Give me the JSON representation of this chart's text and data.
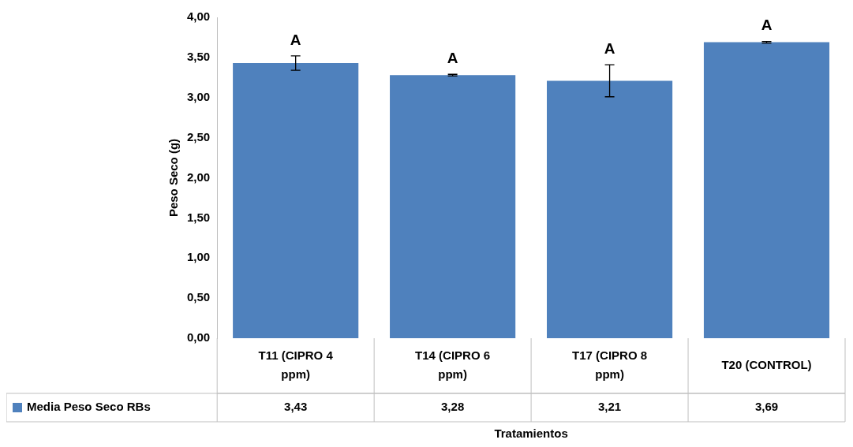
{
  "chart_data": {
    "type": "bar",
    "xlabel": "Tratamientos",
    "ylabel": "Peso Seco (g)",
    "categories": [
      "T11 (CIPRO 4 ppm)",
      "T14 (CIPRO 6 ppm)",
      "T17 (CIPRO 8 ppm)",
      "T20 (CONTROL)"
    ],
    "series": [
      {
        "name": "Media Peso Seco RBs",
        "color": "#4f81bd",
        "values": [
          3.43,
          3.28,
          3.21,
          3.69
        ],
        "errors": [
          0.09,
          0.01,
          0.2,
          0.01
        ],
        "value_labels": [
          "3,43",
          "3,28",
          "3,21",
          "3,69"
        ]
      }
    ],
    "ylim": [
      0,
      4
    ],
    "yticks": [
      {
        "value": 0,
        "label": "0,00"
      },
      {
        "value": 0.5,
        "label": "0,50"
      },
      {
        "value": 1,
        "label": "1,00"
      },
      {
        "value": 1.5,
        "label": "1,50"
      },
      {
        "value": 2,
        "label": "2,00"
      },
      {
        "value": 2.5,
        "label": "2,50"
      },
      {
        "value": 3,
        "label": "3,00"
      },
      {
        "value": 3.5,
        "label": "3,50"
      },
      {
        "value": 4,
        "label": "4,00"
      }
    ],
    "grid": false,
    "annotations": [
      "A",
      "A",
      "A",
      "A"
    ]
  }
}
